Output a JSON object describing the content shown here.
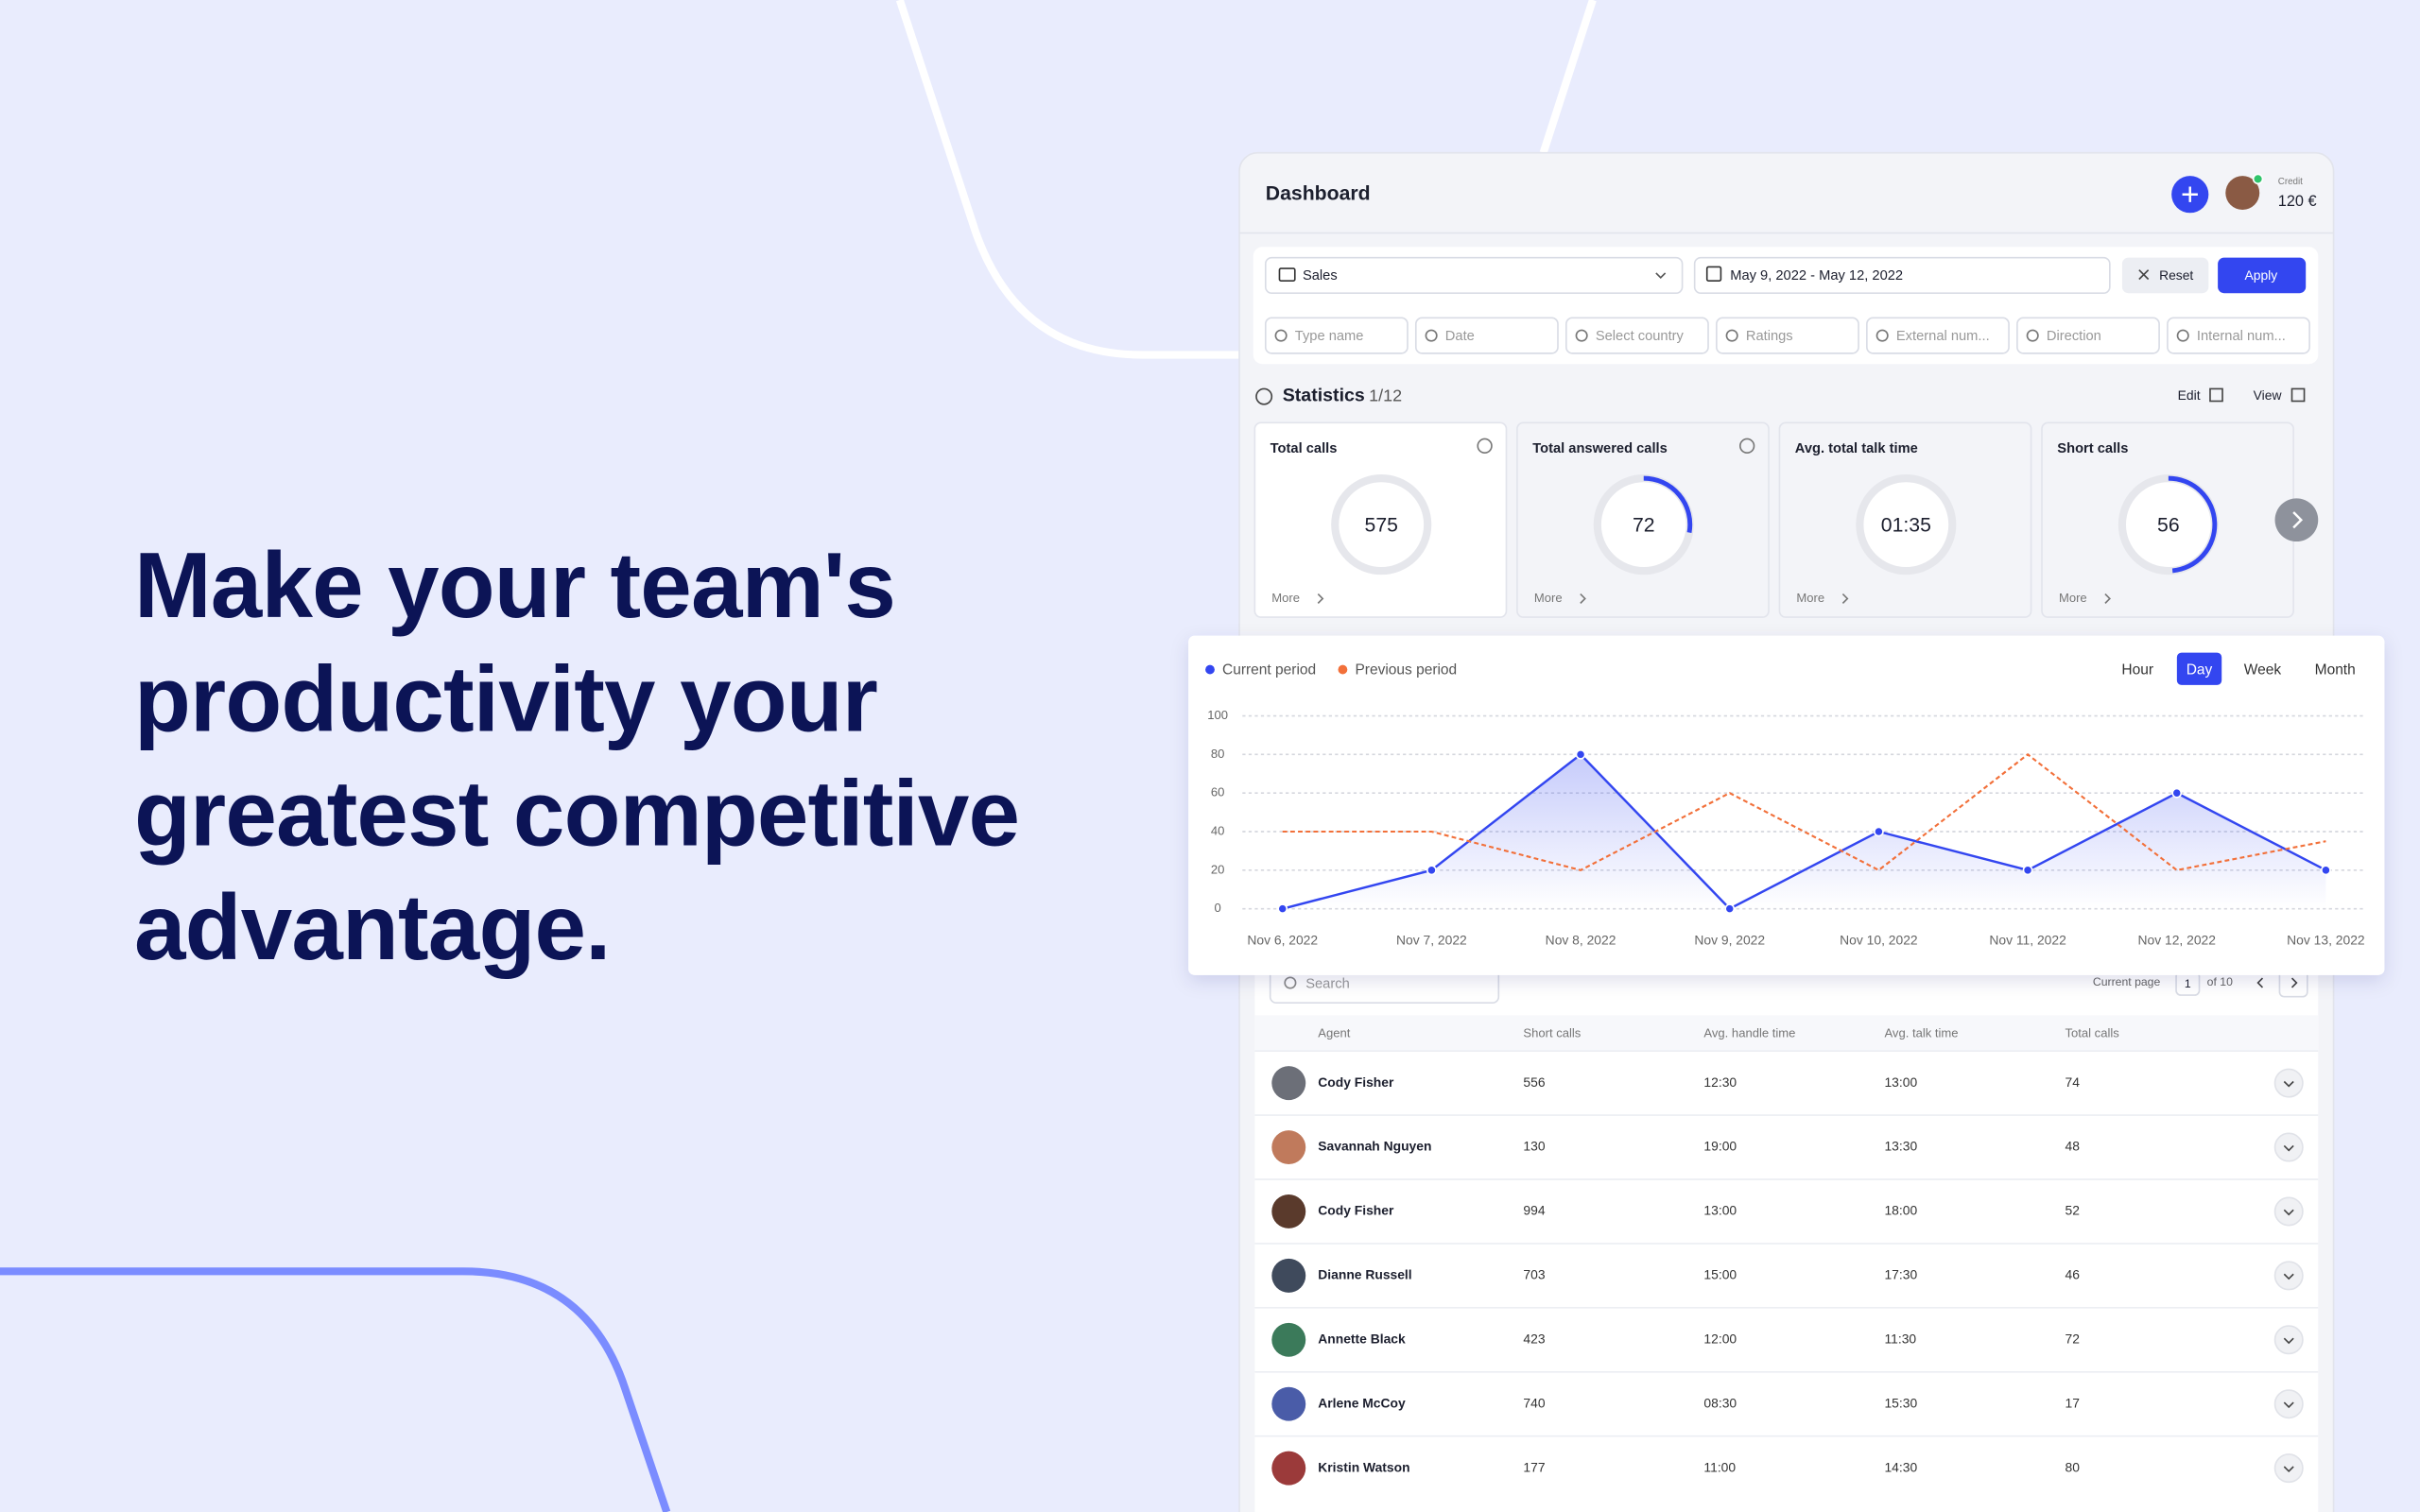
{
  "headline": [
    "Make your team's",
    "productivity your",
    "greatest competitive",
    "advantage."
  ],
  "dashboard": {
    "title": "Dashboard",
    "credit_label": "Credit",
    "credit": "120 €"
  },
  "filters": {
    "group": "Sales",
    "date_range": "May 9, 2022 - May 12, 2022",
    "reset": "Reset",
    "apply": "Apply",
    "fields": [
      "Type name",
      "Date",
      "Select country",
      "Ratings",
      "External num...",
      "Direction",
      "Internal num..."
    ]
  },
  "statistics": {
    "title": "Statistics",
    "page": "1/12",
    "edit": "Edit",
    "view": "View",
    "cards": [
      {
        "label": "Total calls",
        "value": 575,
        "more": "More"
      },
      {
        "label": "Total answered calls",
        "value": 72,
        "more": "More"
      },
      {
        "label": "Avg. total talk time",
        "value": "01:35",
        "more": "More"
      },
      {
        "label": "Short calls",
        "value": 56,
        "more": "More"
      }
    ]
  },
  "chart_data": {
    "type": "line",
    "categories": [
      "Nov 6, 2022",
      "Nov 7, 2022",
      "Nov 8, 2022",
      "Nov 9, 2022",
      "Nov 10, 2022",
      "Nov 11, 2022",
      "Nov 12, 2022",
      "Nov 13, 2022"
    ],
    "series": [
      {
        "name": "Current period",
        "color": "#3346f0",
        "values": [
          0,
          20,
          80,
          0,
          40,
          20,
          60,
          20
        ]
      },
      {
        "name": "Previous period",
        "color": "#f2703a",
        "values": [
          40,
          40,
          20,
          60,
          20,
          80,
          20,
          35
        ]
      }
    ],
    "ylim": [
      0,
      100
    ],
    "yticks": [
      0,
      20,
      40,
      60,
      80,
      100
    ],
    "grid": true,
    "periods": [
      "Hour",
      "Day",
      "Week",
      "Month"
    ],
    "active_period": "Day"
  },
  "table": {
    "search": "Search",
    "current_page_label": "Current page",
    "current_page": 1,
    "page_total": "of 10",
    "columns": [
      "Agent",
      "Short calls",
      "Avg. handle time",
      "Avg. talk time",
      "Total calls"
    ],
    "rows": [
      [
        "Cody Fisher",
        556,
        "12:30",
        "13:00",
        74
      ],
      [
        "Savannah Nguyen",
        130,
        "19:00",
        "13:30",
        48
      ],
      [
        "Cody Fisher",
        994,
        "13:00",
        "18:00",
        52
      ],
      [
        "Dianne Russell",
        703,
        "15:00",
        "17:30",
        46
      ],
      [
        "Annette Black",
        423,
        "12:00",
        "11:30",
        72
      ],
      [
        "Arlene McCoy",
        740,
        "08:30",
        "15:30",
        17
      ],
      [
        "Kristin Watson",
        177,
        "11:00",
        "14:30",
        80
      ]
    ]
  }
}
